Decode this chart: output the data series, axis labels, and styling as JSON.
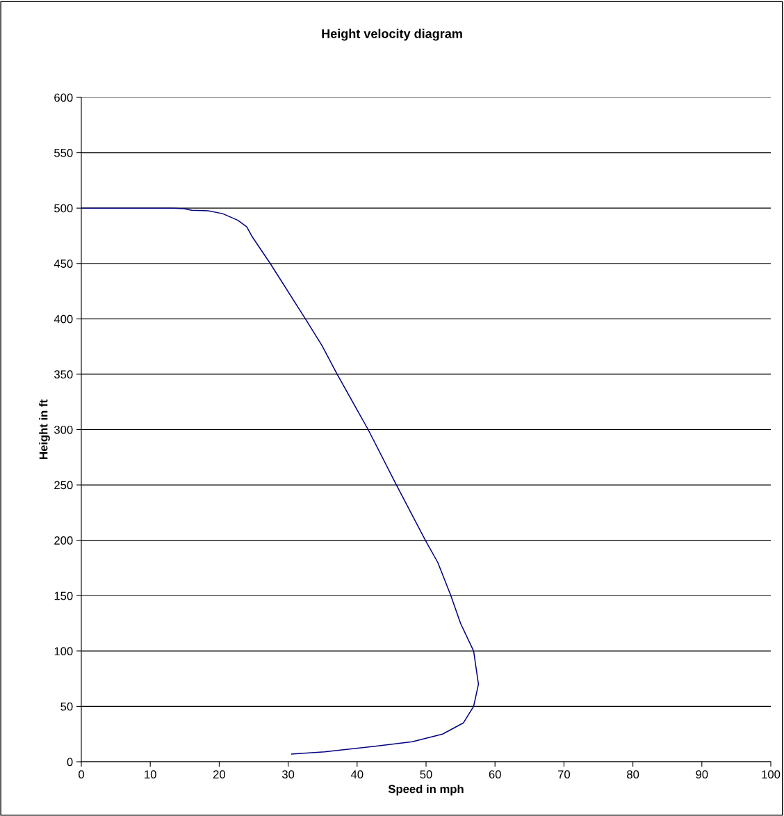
{
  "chart_data": {
    "type": "line",
    "title": "Height velocity diagram",
    "xlabel": "Speed in mph",
    "ylabel": "Height in ft",
    "series": [
      {
        "color": "#000080",
        "x": [
          0,
          12.9,
          14.9,
          16.0,
          18.4,
          20.5,
          22.7,
          24.0,
          24.8,
          27.4,
          32.5,
          34.9,
          37.1,
          41.6,
          45.7,
          49.9,
          51.7,
          53.6,
          55.0,
          56.9,
          57.6,
          56.9,
          55.4,
          52.4,
          48.0,
          42.6,
          35.3,
          30.5
        ],
        "values": [
          500,
          500,
          499.5,
          498,
          497.6,
          495,
          489,
          483,
          474,
          450,
          400,
          376,
          350,
          300,
          250,
          200,
          180,
          150,
          125,
          100,
          70,
          50,
          35,
          25,
          18,
          14,
          9,
          7
        ]
      }
    ],
    "xlim": [
      0,
      100
    ],
    "xticks": [
      0,
      10,
      20,
      30,
      40,
      50,
      60,
      70,
      80,
      90,
      100
    ],
    "ylim": [
      0,
      600
    ],
    "yticks": [
      0,
      50,
      100,
      150,
      200,
      250,
      300,
      350,
      400,
      450,
      500,
      550,
      600
    ],
    "grid": "y",
    "marker": "none",
    "line_style": "solid"
  }
}
